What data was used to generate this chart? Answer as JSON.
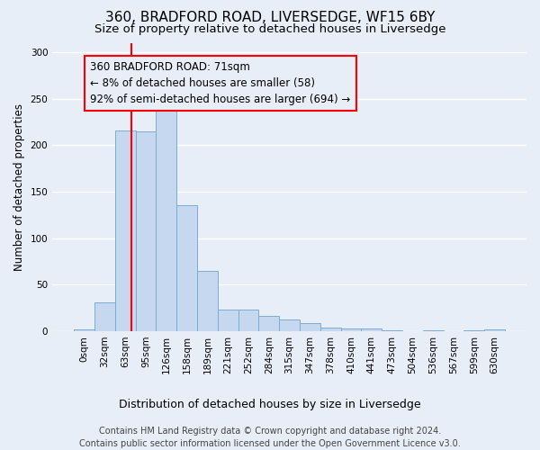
{
  "title1": "360, BRADFORD ROAD, LIVERSEDGE, WF15 6BY",
  "title2": "Size of property relative to detached houses in Liversedge",
  "xlabel": "Distribution of detached houses by size in Liversedge",
  "ylabel": "Number of detached properties",
  "bar_values": [
    2,
    31,
    216,
    215,
    245,
    135,
    65,
    23,
    23,
    16,
    13,
    9,
    4,
    3,
    3,
    1,
    0,
    1,
    0,
    1,
    2
  ],
  "bin_labels": [
    "0sqm",
    "32sqm",
    "63sqm",
    "95sqm",
    "126sqm",
    "158sqm",
    "189sqm",
    "221sqm",
    "252sqm",
    "284sqm",
    "315sqm",
    "347sqm",
    "378sqm",
    "410sqm",
    "441sqm",
    "473sqm",
    "504sqm",
    "536sqm",
    "567sqm",
    "599sqm",
    "630sqm"
  ],
  "bar_color": "#c5d8f0",
  "bar_edge_color": "#7aadd4",
  "ylim": [
    0,
    310
  ],
  "yticks": [
    0,
    50,
    100,
    150,
    200,
    250,
    300
  ],
  "property_label": "360 BRADFORD ROAD: 71sqm",
  "annotation_line1": "← 8% of detached houses are smaller (58)",
  "annotation_line2": "92% of semi-detached houses are larger (694) →",
  "vline_x": 2.3,
  "footer1": "Contains HM Land Registry data © Crown copyright and database right 2024.",
  "footer2": "Contains public sector information licensed under the Open Government Licence v3.0.",
  "background_color": "#e8eef8",
  "grid_color": "#ffffff",
  "title1_fontsize": 11,
  "title2_fontsize": 9.5,
  "xlabel_fontsize": 9,
  "ylabel_fontsize": 8.5,
  "tick_fontsize": 7.5,
  "annotation_fontsize": 8.5,
  "footer_fontsize": 7
}
